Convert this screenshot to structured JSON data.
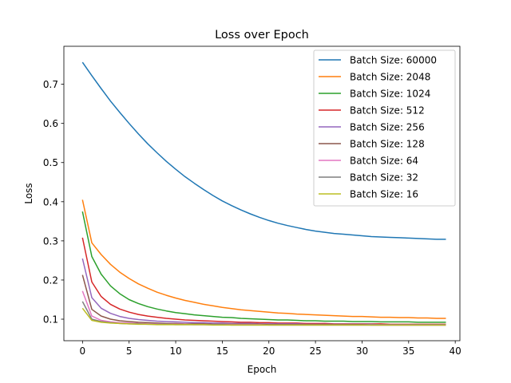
{
  "chart_data": {
    "type": "line",
    "title": "Loss over Epoch",
    "xlabel": "Epoch",
    "ylabel": "Loss",
    "xlim": [
      -2,
      40.5
    ],
    "ylim": [
      0.045,
      0.797
    ],
    "xticks": [
      0,
      5,
      10,
      15,
      20,
      25,
      30,
      35,
      40
    ],
    "yticks": [
      0.1,
      0.2,
      0.3,
      0.4,
      0.5,
      0.6,
      0.7
    ],
    "grid": false,
    "legend_position": "top-right",
    "series": [
      {
        "name": "Batch Size: 60000",
        "color": "#1f77b4",
        "values": [
          0.756,
          0.722,
          0.689,
          0.657,
          0.628,
          0.6,
          0.573,
          0.548,
          0.525,
          0.503,
          0.483,
          0.464,
          0.447,
          0.431,
          0.416,
          0.402,
          0.39,
          0.379,
          0.369,
          0.36,
          0.352,
          0.345,
          0.339,
          0.334,
          0.329,
          0.325,
          0.322,
          0.319,
          0.317,
          0.315,
          0.313,
          0.311,
          0.31,
          0.309,
          0.308,
          0.307,
          0.306,
          0.305,
          0.304,
          0.304
        ]
      },
      {
        "name": "Batch Size: 2048",
        "color": "#ff7f0e",
        "values": [
          0.405,
          0.295,
          0.265,
          0.24,
          0.22,
          0.204,
          0.19,
          0.179,
          0.169,
          0.161,
          0.154,
          0.148,
          0.143,
          0.138,
          0.134,
          0.13,
          0.127,
          0.124,
          0.122,
          0.12,
          0.118,
          0.116,
          0.115,
          0.113,
          0.112,
          0.111,
          0.11,
          0.109,
          0.108,
          0.107,
          0.107,
          0.106,
          0.105,
          0.105,
          0.104,
          0.104,
          0.103,
          0.103,
          0.102,
          0.102
        ]
      },
      {
        "name": "Batch Size: 1024",
        "color": "#2ca02c",
        "values": [
          0.375,
          0.26,
          0.215,
          0.185,
          0.165,
          0.15,
          0.14,
          0.132,
          0.126,
          0.121,
          0.117,
          0.114,
          0.111,
          0.109,
          0.107,
          0.105,
          0.104,
          0.102,
          0.101,
          0.1,
          0.099,
          0.098,
          0.098,
          0.097,
          0.096,
          0.096,
          0.095,
          0.095,
          0.095,
          0.094,
          0.094,
          0.094,
          0.093,
          0.093,
          0.093,
          0.093,
          0.092,
          0.092,
          0.092,
          0.092
        ]
      },
      {
        "name": "Batch Size: 512",
        "color": "#d62728",
        "values": [
          0.308,
          0.195,
          0.158,
          0.138,
          0.126,
          0.118,
          0.112,
          0.108,
          0.105,
          0.102,
          0.1,
          0.098,
          0.097,
          0.096,
          0.095,
          0.094,
          0.093,
          0.092,
          0.092,
          0.091,
          0.091,
          0.09,
          0.09,
          0.09,
          0.089,
          0.089,
          0.089,
          0.088,
          0.088,
          0.088,
          0.088,
          0.088,
          0.088,
          0.087,
          0.087,
          0.087,
          0.087,
          0.087,
          0.087,
          0.087
        ]
      },
      {
        "name": "Batch Size: 256",
        "color": "#9467bd",
        "values": [
          0.255,
          0.155,
          0.128,
          0.115,
          0.107,
          0.102,
          0.099,
          0.097,
          0.095,
          0.094,
          0.093,
          0.092,
          0.091,
          0.091,
          0.09,
          0.09,
          0.089,
          0.089,
          0.089,
          0.088,
          0.088,
          0.088,
          0.088,
          0.088,
          0.087,
          0.087,
          0.087,
          0.087,
          0.087,
          0.087,
          0.087,
          0.087,
          0.086,
          0.086,
          0.086,
          0.086,
          0.086,
          0.086,
          0.086,
          0.086
        ]
      },
      {
        "name": "Batch Size: 128",
        "color": "#8c564b",
        "values": [
          0.213,
          0.125,
          0.108,
          0.1,
          0.096,
          0.094,
          0.092,
          0.091,
          0.09,
          0.089,
          0.089,
          0.088,
          0.088,
          0.088,
          0.087,
          0.087,
          0.087,
          0.087,
          0.087,
          0.087,
          0.086,
          0.086,
          0.086,
          0.086,
          0.086,
          0.086,
          0.086,
          0.086,
          0.086,
          0.086,
          0.086,
          0.085,
          0.085,
          0.085,
          0.085,
          0.085,
          0.085,
          0.085,
          0.085,
          0.085
        ]
      },
      {
        "name": "Batch Size: 64",
        "color": "#e377c2",
        "values": [
          0.172,
          0.108,
          0.097,
          0.093,
          0.091,
          0.09,
          0.089,
          0.088,
          0.088,
          0.087,
          0.087,
          0.087,
          0.086,
          0.086,
          0.086,
          0.086,
          0.086,
          0.086,
          0.086,
          0.086,
          0.085,
          0.085,
          0.085,
          0.085,
          0.085,
          0.085,
          0.085,
          0.085,
          0.085,
          0.085,
          0.085,
          0.085,
          0.085,
          0.085,
          0.085,
          0.085,
          0.085,
          0.085,
          0.085,
          0.085
        ]
      },
      {
        "name": "Batch Size: 32",
        "color": "#7f7f7f",
        "values": [
          0.145,
          0.1,
          0.094,
          0.091,
          0.089,
          0.088,
          0.088,
          0.087,
          0.087,
          0.087,
          0.086,
          0.086,
          0.086,
          0.086,
          0.086,
          0.086,
          0.085,
          0.085,
          0.085,
          0.085,
          0.085,
          0.085,
          0.085,
          0.085,
          0.085,
          0.085,
          0.085,
          0.085,
          0.085,
          0.085,
          0.085,
          0.085,
          0.085,
          0.085,
          0.085,
          0.085,
          0.085,
          0.085,
          0.085,
          0.085
        ]
      },
      {
        "name": "Batch Size: 16",
        "color": "#bcbd22",
        "values": [
          0.128,
          0.097,
          0.092,
          0.09,
          0.089,
          0.088,
          0.087,
          0.087,
          0.086,
          0.086,
          0.086,
          0.086,
          0.086,
          0.086,
          0.085,
          0.085,
          0.085,
          0.085,
          0.085,
          0.085,
          0.085,
          0.085,
          0.085,
          0.085,
          0.085,
          0.085,
          0.085,
          0.085,
          0.085,
          0.085,
          0.085,
          0.085,
          0.085,
          0.085,
          0.085,
          0.085,
          0.085,
          0.085,
          0.085,
          0.085
        ]
      }
    ]
  }
}
